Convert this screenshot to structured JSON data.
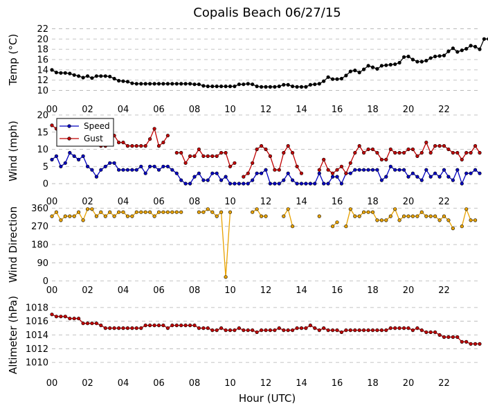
{
  "chart_data": {
    "type": "line",
    "title": "Copalis Beach 06/27/15",
    "xlabel": "Hour (UTC)",
    "x_tick_labels": [
      "00",
      "02",
      "04",
      "06",
      "08",
      "10",
      "12",
      "14",
      "16",
      "18",
      "20",
      "22"
    ],
    "x_ticks": [
      0,
      2,
      4,
      6,
      8,
      10,
      12,
      14,
      16,
      18,
      20,
      22
    ],
    "xlim": [
      0,
      24
    ],
    "sample_interval_hours": 0.25,
    "colors": {
      "temp": "#000000",
      "speed": "#0000bf",
      "gust": "#c00000",
      "direction": "#e8a200",
      "pressure": "#c00000",
      "grid": "#b0b0b0"
    },
    "panels": [
      {
        "id": "temp",
        "ylabel": "Temp (°C)",
        "ylim": [
          9,
          23
        ],
        "yticks": [
          10,
          12,
          14,
          16,
          18,
          20,
          22
        ],
        "grid": "horizontal dashed",
        "series": [
          {
            "key": "temp",
            "marker": "circle",
            "values": [
              14.0,
              13.5,
              13.4,
              13.4,
              13.3,
              13.0,
              12.8,
              12.5,
              12.8,
              12.4,
              12.8,
              12.8,
              12.8,
              12.7,
              12.3,
              11.9,
              11.8,
              11.7,
              11.4,
              11.3,
              11.3,
              11.3,
              11.3,
              11.3,
              11.3,
              11.3,
              11.3,
              11.3,
              11.3,
              11.3,
              11.3,
              11.3,
              11.2,
              11.2,
              10.9,
              10.8,
              10.8,
              10.8,
              10.8,
              10.8,
              10.8,
              10.8,
              11.2,
              11.2,
              11.3,
              11.2,
              10.8,
              10.7,
              10.7,
              10.7,
              10.7,
              10.8,
              11.1,
              11.1,
              10.8,
              10.7,
              10.7,
              10.7,
              11.1,
              11.2,
              11.3,
              11.8,
              12.6,
              12.2,
              12.2,
              12.3,
              12.9,
              13.7,
              13.9,
              13.5,
              14.1,
              14.8,
              14.5,
              14.2,
              14.8,
              14.9,
              15.0,
              15.1,
              15.4,
              16.5,
              16.6,
              16.0,
              15.6,
              15.6,
              15.8,
              16.3,
              16.6,
              16.7,
              16.8,
              17.6,
              18.2,
              17.5,
              17.8,
              18.1,
              18.7,
              18.5,
              18.0,
              20.0,
              20.0,
              21.0,
              20.0
            ]
          }
        ]
      },
      {
        "id": "wind",
        "ylabel": "Wind (mph)",
        "ylim": [
          -1,
          20
        ],
        "yticks": [
          0,
          5,
          10,
          15,
          20
        ],
        "grid": "horizontal dashed",
        "legend": {
          "position": "top-left",
          "entries": [
            "Speed",
            "Gust"
          ]
        },
        "series": [
          {
            "key": "speed",
            "name": "Speed",
            "marker": "circle",
            "values": [
              7,
              8,
              5,
              6,
              9,
              8,
              7,
              8,
              5,
              4,
              2,
              4,
              5,
              6,
              6,
              4,
              4,
              4,
              4,
              4,
              5,
              3,
              5,
              5,
              4,
              5,
              5,
              4,
              3,
              1,
              0,
              0,
              2,
              3,
              1,
              1,
              3,
              3,
              1,
              2,
              0,
              0,
              0,
              0,
              0,
              1,
              3,
              3,
              4,
              0,
              0,
              0,
              1,
              3,
              1,
              0,
              0,
              0,
              0,
              0,
              3,
              0,
              0,
              2,
              2,
              0,
              3,
              3,
              4,
              4,
              4,
              4,
              4,
              4,
              1,
              2,
              5,
              4,
              4,
              4,
              2,
              3,
              2,
              1,
              4,
              2,
              3,
              2,
              4,
              2,
              1,
              4,
              0,
              3,
              3,
              4,
              3
            ]
          },
          {
            "key": "gust",
            "name": "Gust",
            "marker": "circle",
            "values": [
              17,
              16,
              null,
              null,
              null,
              null,
              null,
              null,
              null,
              null,
              null,
              11,
              11,
              12,
              14,
              12,
              12,
              11,
              11,
              11,
              11,
              11,
              13,
              16,
              11,
              12,
              14,
              null,
              9,
              9,
              6,
              8,
              8,
              10,
              8,
              8,
              8,
              8,
              9,
              9,
              5,
              6,
              null,
              2,
              3,
              6,
              10,
              11,
              10,
              8,
              4,
              4,
              9,
              11,
              9,
              5,
              3,
              null,
              null,
              null,
              4,
              7,
              4,
              3,
              4,
              5,
              3,
              6,
              9,
              11,
              9,
              10,
              10,
              9,
              7,
              7,
              10,
              9,
              9,
              9,
              10,
              10,
              8,
              9,
              12,
              9,
              11,
              11,
              11,
              10,
              9,
              9,
              7,
              9,
              9,
              11,
              9
            ]
          }
        ]
      },
      {
        "id": "direction",
        "ylabel": "Wind Direction",
        "ylim": [
          -15,
          375
        ],
        "yticks": [
          0,
          90,
          180,
          270,
          360
        ],
        "grid": "horizontal dashed",
        "series": [
          {
            "key": "direction",
            "marker": "circle",
            "values": [
              320,
              340,
              300,
              320,
              320,
              320,
              340,
              300,
              355,
              355,
              320,
              340,
              320,
              340,
              320,
              340,
              340,
              320,
              320,
              340,
              340,
              340,
              340,
              320,
              340,
              340,
              340,
              340,
              340,
              340,
              null,
              null,
              null,
              340,
              340,
              355,
              340,
              320,
              340,
              20,
              340,
              null,
              null,
              null,
              null,
              340,
              355,
              320,
              320,
              null,
              null,
              null,
              320,
              355,
              270,
              null,
              null,
              null,
              null,
              null,
              320,
              null,
              null,
              270,
              290,
              null,
              270,
              355,
              320,
              320,
              340,
              340,
              340,
              300,
              300,
              300,
              320,
              355,
              300,
              320,
              320,
              320,
              320,
              340,
              320,
              320,
              320,
              300,
              320,
              300,
              260,
              null,
              270,
              355,
              300,
              300
            ]
          }
        ]
      },
      {
        "id": "pressure",
        "ylabel": "Altimeter (hPa)",
        "ylim": [
          1009,
          1019
        ],
        "yticks": [
          1010,
          1012,
          1014,
          1016,
          1018
        ],
        "grid": "horizontal dashed",
        "series": [
          {
            "key": "pressure",
            "marker": "circle",
            "values": [
              1017.0,
              1016.7,
              1016.7,
              1016.7,
              1016.4,
              1016.4,
              1016.4,
              1015.7,
              1015.7,
              1015.7,
              1015.7,
              1015.4,
              1015.0,
              1015.0,
              1015.0,
              1015.0,
              1015.0,
              1015.0,
              1015.0,
              1015.0,
              1015.0,
              1015.4,
              1015.4,
              1015.4,
              1015.4,
              1015.4,
              1015.0,
              1015.4,
              1015.4,
              1015.4,
              1015.4,
              1015.4,
              1015.4,
              1015.0,
              1015.0,
              1015.0,
              1014.7,
              1014.7,
              1015.0,
              1014.7,
              1014.7,
              1014.7,
              1015.0,
              1014.7,
              1014.7,
              1014.7,
              1014.4,
              1014.7,
              1014.7,
              1014.7,
              1014.7,
              1015.0,
              1014.7,
              1014.7,
              1014.7,
              1015.0,
              1015.0,
              1015.0,
              1015.4,
              1015.0,
              1014.7,
              1015.0,
              1014.7,
              1014.7,
              1014.7,
              1014.4,
              1014.7,
              1014.7,
              1014.7,
              1014.7,
              1014.7,
              1014.7,
              1014.7,
              1014.7,
              1014.7,
              1014.7,
              1015.0,
              1015.0,
              1015.0,
              1015.0,
              1015.0,
              1014.7,
              1015.0,
              1014.7,
              1014.4,
              1014.4,
              1014.4,
              1014.0,
              1013.7,
              1013.7,
              1013.7,
              1013.7,
              1013.0,
              1013.0,
              1012.7,
              1012.7,
              1012.7
            ]
          }
        ]
      }
    ]
  }
}
